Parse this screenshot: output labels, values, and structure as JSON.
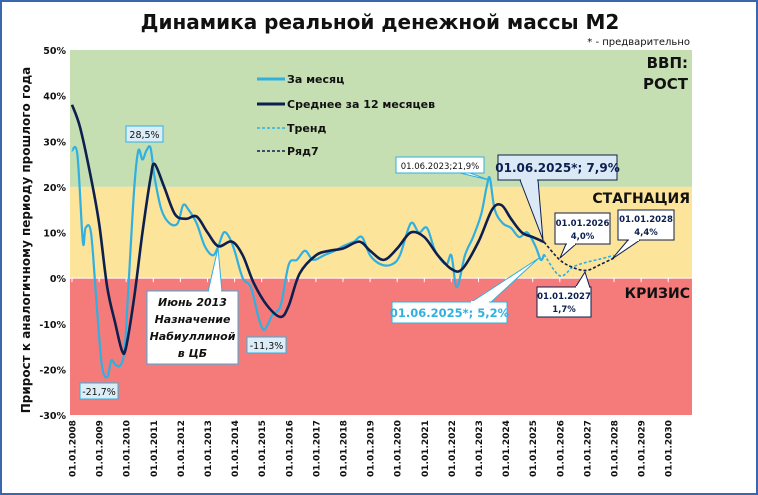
{
  "chart_data": {
    "type": "line",
    "title": "Динамика реальной денежной массы М2",
    "note": "* - предварительно",
    "ylabel": "Прирост к аналогичному периоду прошлого года",
    "ylim": [
      -30,
      50
    ],
    "yticks": [
      "50%",
      "40%",
      "30%",
      "20%",
      "10%",
      "0%",
      "-10%",
      "-20%",
      "-30%"
    ],
    "xticks": [
      "01.01.2008",
      "01.01.2009",
      "01.01.2010",
      "01.01.2011",
      "01.01.2012",
      "01.01.2013",
      "01.01.2014",
      "01.01.2015",
      "01.01.2016",
      "01.01.2017",
      "01.01.2018",
      "01.01.2019",
      "01.01.2020",
      "01.01.2021",
      "01.01.2022",
      "01.01.2023",
      "01.01.2024",
      "01.01.2025",
      "01.01.2026",
      "01.01.2027",
      "01.01.2028",
      "01.01.2029",
      "01.01.2030"
    ],
    "zones": [
      {
        "label": "ВВП:",
        "label2": "РОСТ",
        "from": 20,
        "to": 50,
        "color": "#c5dfb3"
      },
      {
        "label": "СТАГНАЦИЯ",
        "from": 0,
        "to": 20,
        "color": "#fde49b"
      },
      {
        "label": "КРИЗИС",
        "from": -30,
        "to": 0,
        "color": "#f57b7b"
      }
    ],
    "legend_position": "top-left",
    "series": [
      {
        "name": "За месяц",
        "color": "#2fb0e0",
        "dash": false,
        "x": [
          2008.0,
          2008.2,
          2008.4,
          2008.5,
          2008.7,
          2008.9,
          2009.1,
          2009.3,
          2009.45,
          2009.6,
          2009.8,
          2009.95,
          2010.1,
          2010.3,
          2010.45,
          2010.6,
          2010.75,
          2010.9,
          2011.05,
          2011.3,
          2011.6,
          2011.9,
          2012.1,
          2012.3,
          2012.6,
          2012.9,
          2013.2,
          2013.4,
          2013.6,
          2013.8,
          2014.0,
          2014.3,
          2014.6,
          2014.9,
          2015.1,
          2015.4,
          2015.7,
          2016.0,
          2016.3,
          2016.6,
          2016.9,
          2017.3,
          2017.7,
          2018.0,
          2018.4,
          2018.7,
          2019.0,
          2019.4,
          2019.8,
          2020.1,
          2020.5,
          2020.8,
          2021.1,
          2021.4,
          2021.8,
          2022.0,
          2022.2,
          2022.5,
          2022.8,
          2023.1,
          2023.3,
          2023.42,
          2023.6,
          2023.9,
          2024.2,
          2024.5,
          2024.8,
          2025.1,
          2025.3,
          2025.42
        ],
        "y": [
          28,
          27,
          8,
          11,
          10,
          -5,
          -19,
          -21.7,
          -18,
          -19,
          -19,
          -15,
          0,
          20,
          28,
          26,
          28,
          28.5,
          22,
          15,
          12,
          12,
          16,
          15,
          12,
          7,
          5,
          7,
          10,
          9,
          6,
          0,
          -2,
          -9,
          -11.3,
          -8,
          -6,
          3,
          4,
          6,
          4,
          5,
          6,
          7,
          8,
          9,
          5,
          3,
          3,
          5,
          12,
          10,
          11,
          6,
          3,
          5,
          -2,
          5,
          9,
          14,
          20,
          21.9,
          15,
          12,
          11,
          9,
          10,
          7,
          4,
          5.2
        ]
      },
      {
        "name": "Среднее за 12 месяцев",
        "color": "#0d1f4e",
        "dash": false,
        "x": [
          2008.0,
          2008.3,
          2008.7,
          2009.0,
          2009.3,
          2009.6,
          2009.85,
          2010.0,
          2010.3,
          2010.6,
          2010.9,
          2011.05,
          2011.4,
          2011.8,
          2012.2,
          2012.6,
          2013.0,
          2013.4,
          2013.9,
          2014.3,
          2014.7,
          2015.2,
          2015.7,
          2016.0,
          2016.4,
          2017.0,
          2017.5,
          2018.0,
          2018.6,
          2019.0,
          2019.5,
          2020.0,
          2020.5,
          2021.0,
          2021.5,
          2022.0,
          2022.4,
          2023.0,
          2023.5,
          2023.85,
          2024.2,
          2024.6,
          2025.0,
          2025.42
        ],
        "y": [
          38,
          33,
          22,
          12,
          -2,
          -10,
          -16,
          -15,
          -4,
          10,
          22,
          25,
          20,
          14,
          13,
          13.5,
          10,
          7,
          8,
          5,
          -1,
          -6,
          -8.5,
          -6,
          1,
          5,
          6,
          6.5,
          8,
          6,
          4,
          6.5,
          10,
          9,
          5,
          2,
          2,
          8,
          15,
          16,
          13,
          10,
          9,
          7.9
        ]
      },
      {
        "name": "Тренд",
        "color": "#2fb0e0",
        "dash": true,
        "x": [
          2025.42,
          2026.0,
          2026.5,
          2027.0,
          2027.5,
          2028.0
        ],
        "y": [
          5.2,
          0.5,
          2.5,
          3.5,
          4.2,
          5.0
        ]
      },
      {
        "name": "Ряд7",
        "color": "#0d1f4e",
        "dash": true,
        "x": [
          2025.42,
          2026.0,
          2026.5,
          2027.0,
          2027.5,
          2028.0
        ],
        "y": [
          7.9,
          4.0,
          2.3,
          1.7,
          3.0,
          4.4
        ]
      }
    ],
    "annotations": {
      "peak_2011": "28,5%",
      "low_2009": "-21,7%",
      "low_2015": "-11,3%",
      "nabiullina": [
        "Июнь 2013",
        "Назначение",
        "Набиуллиной",
        "в ЦБ"
      ],
      "peak_2023": "01.06.2023;21,9%",
      "avg_2025": "01.06.2025*; 7,9%",
      "month_2025": "01.06.2025*; 5,2%",
      "f2026": [
        "01.01.2026",
        "4,0%"
      ],
      "f2027": [
        "01.01.2027",
        "1,7%"
      ],
      "f2028": [
        "01.01.2028",
        "4,4%"
      ]
    }
  }
}
